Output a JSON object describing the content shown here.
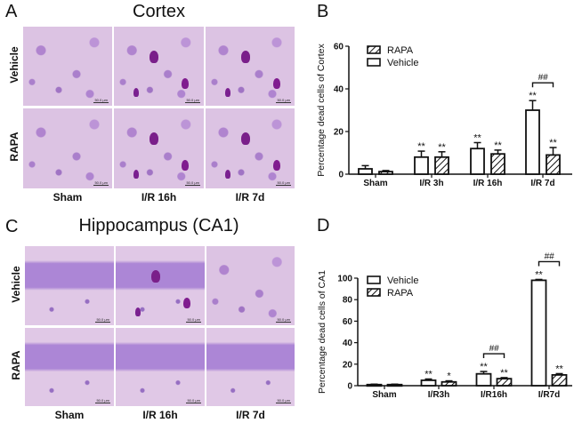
{
  "panels": {
    "A": {
      "letter": "A",
      "title": "Cortex"
    },
    "B": {
      "letter": "B"
    },
    "C": {
      "letter": "C",
      "title": "Hippocampus (CA1)"
    },
    "D": {
      "letter": "D"
    }
  },
  "micrographs": {
    "row_labels": [
      "Vehicle",
      "RAPA"
    ],
    "col_labels": [
      "Sham",
      "I/R 16h",
      "I/R 7d"
    ],
    "scale_bar": "50.0 μm"
  },
  "colors": {
    "stain_bg": "#dcc3e3",
    "dead_cell": "#7a1f8a",
    "bar_outline": "#111111",
    "bar_fill": "#ffffff"
  },
  "chart_data": [
    {
      "panel": "B",
      "type": "bar",
      "title": "",
      "xlabel": "",
      "ylabel": "Percentage dead cells of Cortex",
      "ylim": [
        0,
        60
      ],
      "yticks": [
        0,
        20,
        40,
        60
      ],
      "categories": [
        "Sham",
        "I/R 3h",
        "I/R 16h",
        "I/R 7d"
      ],
      "legend": [
        "RAPA",
        "Vehicle"
      ],
      "legend_position": "upper-left",
      "grid": false,
      "series": [
        {
          "name": "Vehicle",
          "pattern": "open",
          "values": [
            2.5,
            8,
            12,
            30
          ],
          "errors": [
            1.5,
            2.8,
            2.8,
            4.5
          ],
          "annotations": [
            "",
            "**",
            "**",
            "**"
          ]
        },
        {
          "name": "RAPA",
          "pattern": "hatched",
          "values": [
            1.2,
            8,
            9.5,
            9
          ],
          "errors": [
            0.5,
            2.5,
            1.8,
            3.5
          ],
          "annotations": [
            "",
            "**",
            "**",
            "**"
          ]
        }
      ],
      "comparisons": [
        {
          "category": "I/R 7d",
          "label": "##"
        }
      ]
    },
    {
      "panel": "D",
      "type": "bar",
      "title": "",
      "xlabel": "",
      "ylabel": "Percentage dead cells of CA1",
      "ylim": [
        0,
        100
      ],
      "yticks": [
        0,
        20,
        40,
        60,
        80,
        100
      ],
      "categories": [
        "Sham",
        "I/R3h",
        "I/R16h",
        "I/R7d"
      ],
      "legend": [
        "Vehicle",
        "RAPA"
      ],
      "legend_position": "upper-left",
      "grid": false,
      "series": [
        {
          "name": "Vehicle",
          "pattern": "open",
          "values": [
            1,
            5,
            11,
            98
          ],
          "errors": [
            0.4,
            1.2,
            2.2,
            0.8
          ],
          "annotations": [
            "",
            "**",
            "**",
            "**"
          ]
        },
        {
          "name": "RAPA",
          "pattern": "hatched",
          "values": [
            1,
            3.5,
            6.5,
            10
          ],
          "errors": [
            0.4,
            1,
            1,
            1.2
          ],
          "annotations": [
            "",
            "*",
            "**",
            "**"
          ]
        }
      ],
      "comparisons": [
        {
          "category": "I/R16h",
          "label": "##"
        },
        {
          "category": "I/R7d",
          "label": "##"
        }
      ]
    }
  ]
}
